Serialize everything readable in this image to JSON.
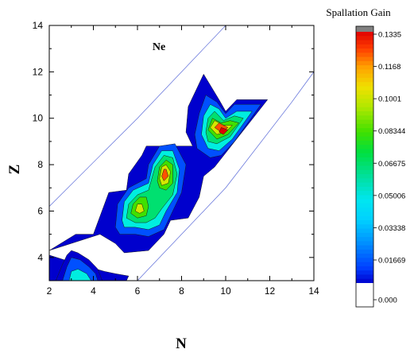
{
  "chart_data": {
    "type": "contour",
    "title": "",
    "xlabel": "N",
    "ylabel": "Z",
    "xlim": [
      2,
      14
    ],
    "ylim": [
      3,
      14
    ],
    "x_ticks": [
      2,
      4,
      6,
      8,
      10,
      12,
      14
    ],
    "y_ticks": [
      4,
      6,
      8,
      10,
      12,
      14
    ],
    "grid": false,
    "annotation": "Ne",
    "colorbar": {
      "title": "Spallation Gain",
      "tick_values": [
        "0.000",
        "0.01669",
        "0.03338",
        "0.05006",
        "0.06675",
        "0.08344",
        "0.1001",
        "0.1168",
        "0.1335"
      ],
      "min": 0,
      "max": 0.1335,
      "above_max_color": "#808080",
      "zero_color": "#ffffff",
      "colors": [
        "#0000cd",
        "#0050ff",
        "#00b4ff",
        "#00eee0",
        "#00e070",
        "#40e000",
        "#d4e800",
        "#ffb000",
        "#ff5000",
        "#e00000"
      ]
    },
    "guide_lines": [
      {
        "points": [
          [
            2,
            6.2
          ],
          [
            6,
            10.0
          ],
          [
            9,
            13.0
          ],
          [
            10,
            14.0
          ]
        ]
      },
      {
        "points": [
          [
            6,
            3.0
          ],
          [
            10,
            7.0
          ],
          [
            13,
            10.7
          ],
          [
            14,
            12.0
          ]
        ]
      }
    ],
    "contour_regions": [
      {
        "level": 0.0083,
        "points": [
          [
            2.0,
            4.3
          ],
          [
            3.2,
            5.0
          ],
          [
            4.0,
            5.0
          ],
          [
            4.7,
            6.8
          ],
          [
            5.5,
            6.9
          ],
          [
            5.6,
            7.6
          ],
          [
            6.2,
            8.4
          ],
          [
            6.4,
            8.8
          ],
          [
            7.3,
            8.8
          ],
          [
            8.5,
            8.8
          ],
          [
            8.2,
            9.4
          ],
          [
            8.3,
            10.5
          ],
          [
            9.0,
            11.9
          ],
          [
            9.7,
            10.8
          ],
          [
            10.0,
            10.3
          ],
          [
            10.5,
            10.8
          ],
          [
            11.9,
            10.8
          ],
          [
            9.5,
            7.9
          ],
          [
            9.0,
            7.5
          ],
          [
            8.8,
            6.6
          ],
          [
            8.3,
            5.7
          ],
          [
            7.5,
            5.6
          ],
          [
            7.2,
            5.0
          ],
          [
            6.5,
            4.3
          ],
          [
            5.4,
            4.2
          ],
          [
            5.0,
            4.6
          ],
          [
            4.3,
            5.0
          ],
          [
            2.0,
            4.3
          ]
        ]
      },
      {
        "level": 0.0083,
        "points": [
          [
            2.0,
            4.1
          ],
          [
            3.0,
            3.8
          ],
          [
            4.5,
            3.4
          ],
          [
            5.0,
            3.3
          ],
          [
            5.6,
            3.2
          ],
          [
            5.5,
            3.0
          ],
          [
            4.0,
            3.0
          ],
          [
            2.0,
            3.0
          ]
        ]
      },
      {
        "level": 0.0083,
        "points": [
          [
            2.3,
            3.0
          ],
          [
            2.6,
            3.7
          ],
          [
            2.8,
            4.1
          ],
          [
            3.0,
            4.3
          ],
          [
            3.3,
            4.2
          ],
          [
            3.8,
            3.9
          ],
          [
            4.2,
            3.5
          ],
          [
            4.4,
            3.0
          ]
        ]
      },
      {
        "level": 0.025,
        "points": [
          [
            5.0,
            5.3
          ],
          [
            5.1,
            6.3
          ],
          [
            5.6,
            7.0
          ],
          [
            6.4,
            7.4
          ],
          [
            6.5,
            8.0
          ],
          [
            7.0,
            8.8
          ],
          [
            7.7,
            8.9
          ],
          [
            8.2,
            8.0
          ],
          [
            8.0,
            6.8
          ],
          [
            7.6,
            6.0
          ],
          [
            7.2,
            5.2
          ],
          [
            6.5,
            4.9
          ],
          [
            5.9,
            5.0
          ],
          [
            5.2,
            5.0
          ],
          [
            5.0,
            5.3
          ]
        ]
      },
      {
        "level": 0.025,
        "points": [
          [
            8.6,
            9.3
          ],
          [
            8.8,
            10.2
          ],
          [
            9.1,
            11.0
          ],
          [
            9.6,
            10.7
          ],
          [
            10.0,
            10.2
          ],
          [
            10.4,
            10.6
          ],
          [
            11.6,
            10.6
          ],
          [
            10.4,
            9.0
          ],
          [
            9.8,
            8.4
          ],
          [
            9.3,
            8.3
          ],
          [
            8.7,
            8.7
          ],
          [
            8.6,
            9.3
          ]
        ]
      },
      {
        "level": 0.025,
        "points": [
          [
            2.6,
            3.0
          ],
          [
            2.8,
            3.6
          ],
          [
            3.0,
            4.0
          ],
          [
            3.4,
            3.9
          ],
          [
            3.8,
            3.6
          ],
          [
            4.1,
            3.3
          ],
          [
            4.2,
            3.0
          ]
        ]
      },
      {
        "level": 0.0417,
        "points": [
          [
            5.3,
            5.6
          ],
          [
            5.4,
            6.4
          ],
          [
            5.8,
            6.9
          ],
          [
            6.5,
            7.2
          ],
          [
            6.7,
            8.0
          ],
          [
            7.1,
            8.6
          ],
          [
            7.6,
            8.6
          ],
          [
            7.9,
            7.8
          ],
          [
            7.8,
            6.8
          ],
          [
            7.3,
            6.0
          ],
          [
            7.0,
            5.4
          ],
          [
            6.5,
            5.2
          ],
          [
            5.9,
            5.3
          ],
          [
            5.4,
            5.3
          ],
          [
            5.3,
            5.6
          ]
        ]
      },
      {
        "level": 0.0417,
        "points": [
          [
            8.9,
            9.3
          ],
          [
            9.0,
            10.1
          ],
          [
            9.3,
            10.6
          ],
          [
            9.7,
            10.4
          ],
          [
            10.0,
            10.0
          ],
          [
            10.5,
            10.3
          ],
          [
            11.2,
            10.3
          ],
          [
            10.3,
            9.1
          ],
          [
            9.7,
            8.6
          ],
          [
            9.2,
            8.7
          ],
          [
            8.9,
            9.3
          ]
        ]
      },
      {
        "level": 0.0417,
        "points": [
          [
            2.9,
            3.0
          ],
          [
            3.0,
            3.4
          ],
          [
            3.3,
            3.5
          ],
          [
            3.7,
            3.3
          ],
          [
            3.9,
            3.0
          ]
        ]
      },
      {
        "level": 0.0583,
        "points": [
          [
            5.5,
            5.7
          ],
          [
            5.6,
            6.3
          ],
          [
            6.0,
            6.7
          ],
          [
            6.5,
            6.9
          ],
          [
            6.8,
            7.9
          ],
          [
            7.2,
            8.4
          ],
          [
            7.6,
            8.3
          ],
          [
            7.8,
            7.6
          ],
          [
            7.6,
            6.7
          ],
          [
            7.1,
            6.1
          ],
          [
            6.8,
            5.7
          ],
          [
            6.4,
            5.5
          ],
          [
            5.9,
            5.5
          ],
          [
            5.5,
            5.7
          ]
        ]
      },
      {
        "level": 0.0583,
        "points": [
          [
            9.1,
            9.4
          ],
          [
            9.2,
            10.0
          ],
          [
            9.5,
            10.3
          ],
          [
            9.9,
            9.9
          ],
          [
            10.4,
            10.1
          ],
          [
            10.8,
            10.0
          ],
          [
            10.2,
            9.2
          ],
          [
            9.6,
            8.9
          ],
          [
            9.2,
            9.0
          ],
          [
            9.1,
            9.4
          ]
        ]
      },
      {
        "level": 0.075,
        "points": [
          [
            5.7,
            5.9
          ],
          [
            5.8,
            6.3
          ],
          [
            6.1,
            6.6
          ],
          [
            6.4,
            6.6
          ],
          [
            6.5,
            6.2
          ],
          [
            6.4,
            5.8
          ],
          [
            6.0,
            5.7
          ],
          [
            5.7,
            5.9
          ]
        ]
      },
      {
        "level": 0.075,
        "points": [
          [
            6.9,
            7.3
          ],
          [
            7.0,
            7.9
          ],
          [
            7.3,
            8.2
          ],
          [
            7.6,
            8.0
          ],
          [
            7.6,
            7.2
          ],
          [
            7.3,
            6.9
          ],
          [
            7.0,
            7.0
          ],
          [
            6.9,
            7.3
          ]
        ]
      },
      {
        "level": 0.075,
        "points": [
          [
            9.2,
            9.5
          ],
          [
            9.4,
            10.0
          ],
          [
            9.8,
            9.8
          ],
          [
            10.2,
            9.9
          ],
          [
            10.6,
            9.8
          ],
          [
            10.1,
            9.3
          ],
          [
            9.6,
            9.1
          ],
          [
            9.2,
            9.5
          ]
        ]
      },
      {
        "level": 0.0917,
        "points": [
          [
            5.9,
            6.0
          ],
          [
            6.0,
            6.3
          ],
          [
            6.2,
            6.3
          ],
          [
            6.3,
            6.0
          ],
          [
            6.1,
            5.9
          ],
          [
            5.9,
            6.0
          ]
        ]
      },
      {
        "level": 0.0917,
        "points": [
          [
            7.0,
            7.4
          ],
          [
            7.1,
            7.9
          ],
          [
            7.3,
            8.0
          ],
          [
            7.5,
            7.7
          ],
          [
            7.4,
            7.2
          ],
          [
            7.1,
            7.1
          ],
          [
            7.0,
            7.4
          ]
        ]
      },
      {
        "level": 0.0917,
        "points": [
          [
            9.3,
            9.6
          ],
          [
            9.5,
            9.9
          ],
          [
            9.9,
            9.7
          ],
          [
            10.3,
            9.7
          ],
          [
            10.0,
            9.4
          ],
          [
            9.6,
            9.3
          ],
          [
            9.3,
            9.6
          ]
        ]
      },
      {
        "level": 0.108,
        "points": [
          [
            7.1,
            7.5
          ],
          [
            7.2,
            7.8
          ],
          [
            7.3,
            7.8
          ],
          [
            7.4,
            7.5
          ],
          [
            7.2,
            7.3
          ],
          [
            7.1,
            7.5
          ]
        ]
      },
      {
        "level": 0.108,
        "points": [
          [
            9.5,
            9.6
          ],
          [
            9.7,
            9.8
          ],
          [
            10.1,
            9.6
          ],
          [
            9.8,
            9.4
          ],
          [
            9.5,
            9.6
          ]
        ]
      },
      {
        "level": 0.125,
        "points": [
          [
            9.7,
            9.4
          ],
          [
            9.8,
            9.6
          ],
          [
            10.1,
            9.5
          ],
          [
            9.9,
            9.3
          ],
          [
            9.7,
            9.4
          ]
        ]
      }
    ]
  }
}
